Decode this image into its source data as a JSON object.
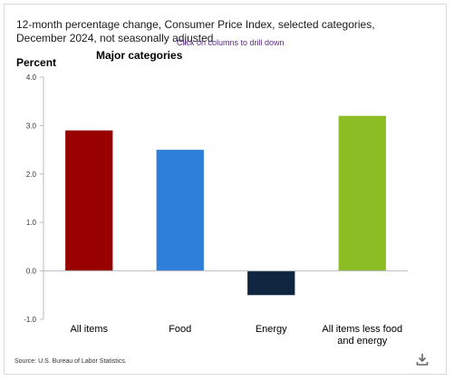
{
  "header": {
    "title": "12-month percentage change, Consumer Price Index, selected categories, December 2024, not seasonally adjusted",
    "drill_hint": "Click on columns to drill down",
    "subtitle": "Major categories"
  },
  "footer": {
    "source": "Source: U.S. Bureau of Labor Statistics."
  },
  "icons": {
    "download": "download-icon"
  },
  "chart_data": {
    "type": "bar",
    "title": "12-month percentage change, Consumer Price Index, selected categories, December 2024, not seasonally adjusted",
    "subtitle": "Major categories",
    "ylabel": "Percent",
    "xlabel": "",
    "ylim": [
      -1.0,
      4.0
    ],
    "yticks": [
      "4.0",
      "3.0",
      "2.0",
      "1.0",
      "0.0",
      "-1.0"
    ],
    "ytick_values": [
      4,
      3,
      2,
      1,
      0,
      -1
    ],
    "categories": [
      [
        "All items"
      ],
      [
        "Food"
      ],
      [
        "Energy"
      ],
      [
        "All items less food",
        "and energy"
      ]
    ],
    "values": [
      2.9,
      2.5,
      -0.5,
      3.2
    ],
    "colors": [
      "#990000",
      "#2e7fd9",
      "#0f2540",
      "#8cbd24"
    ],
    "grid": false,
    "legend": "none"
  }
}
